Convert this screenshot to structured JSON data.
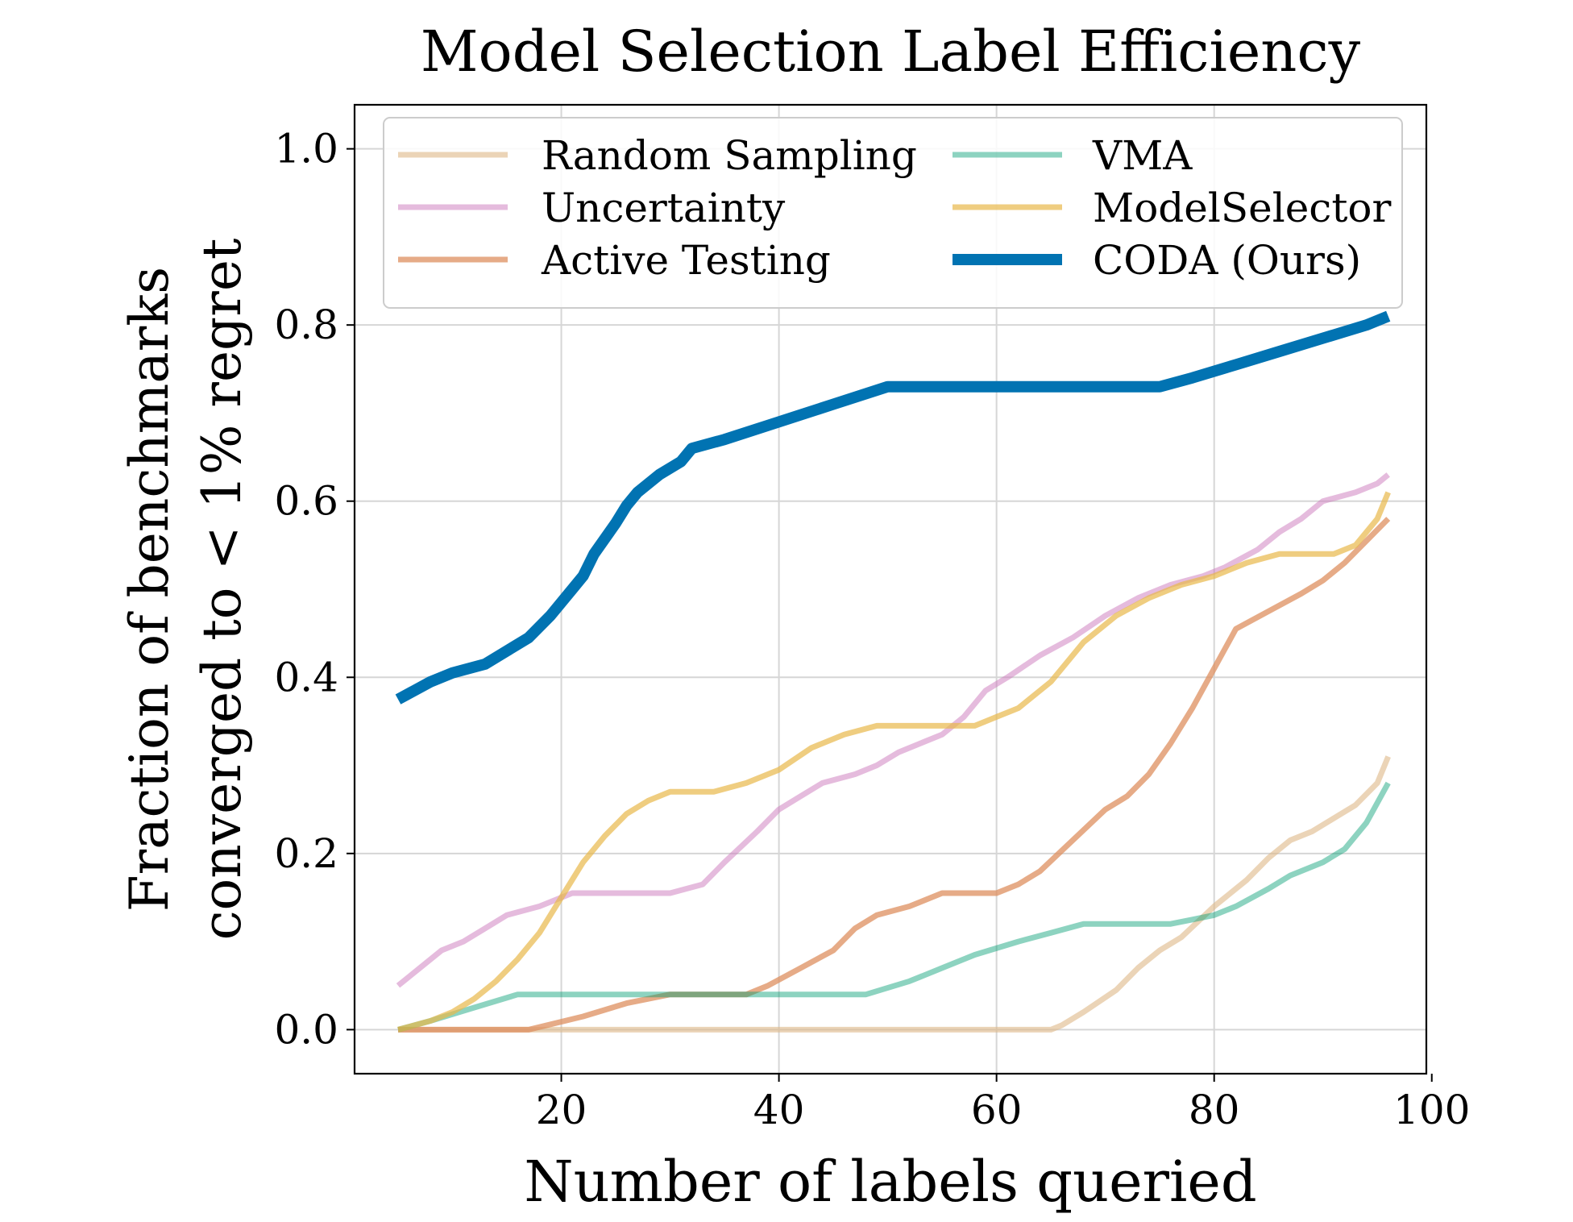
{
  "chart_data": {
    "type": "line",
    "title": "Model Selection Label Efficiency",
    "xlabel": "Number of labels queried",
    "ylabel_line1": "Fraction of benchmarks",
    "ylabel_line2": "converged to < 1% regret",
    "xlim": [
      1,
      99.5
    ],
    "ylim": [
      -0.05,
      1.05
    ],
    "xticks": [
      20,
      40,
      60,
      80,
      100
    ],
    "xtick_labels": [
      "20",
      "40",
      "60",
      "80",
      "100"
    ],
    "yticks": [
      0.0,
      0.2,
      0.4,
      0.6,
      0.8,
      1.0
    ],
    "ytick_labels": [
      "0.0",
      "0.2",
      "0.4",
      "0.6",
      "0.8",
      "1.0"
    ],
    "grid": true,
    "legend_position": "top",
    "series": [
      {
        "name": "Random Sampling",
        "color": "#deb887",
        "opacity": 0.6,
        "width": 7,
        "points": [
          [
            5,
            0
          ],
          [
            10,
            0
          ],
          [
            20,
            0
          ],
          [
            30,
            0
          ],
          [
            40,
            0
          ],
          [
            50,
            0
          ],
          [
            60,
            0
          ],
          [
            65,
            0
          ],
          [
            66,
            0.005
          ],
          [
            68,
            0.02
          ],
          [
            71,
            0.045
          ],
          [
            73,
            0.07
          ],
          [
            75,
            0.09
          ],
          [
            77,
            0.105
          ],
          [
            80,
            0.14
          ],
          [
            83,
            0.17
          ],
          [
            85,
            0.195
          ],
          [
            87,
            0.215
          ],
          [
            89,
            0.225
          ],
          [
            91,
            0.24
          ],
          [
            93,
            0.255
          ],
          [
            95,
            0.28
          ],
          [
            96,
            0.31
          ]
        ]
      },
      {
        "name": "Uncertainty",
        "color": "#cc78bc",
        "opacity": 0.5,
        "width": 7,
        "points": [
          [
            5,
            0.05
          ],
          [
            7,
            0.07
          ],
          [
            9,
            0.09
          ],
          [
            11,
            0.1
          ],
          [
            13,
            0.115
          ],
          [
            15,
            0.13
          ],
          [
            18,
            0.14
          ],
          [
            21,
            0.155
          ],
          [
            25,
            0.155
          ],
          [
            30,
            0.155
          ],
          [
            33,
            0.165
          ],
          [
            35,
            0.19
          ],
          [
            38,
            0.225
          ],
          [
            40,
            0.25
          ],
          [
            42,
            0.265
          ],
          [
            44,
            0.28
          ],
          [
            47,
            0.29
          ],
          [
            49,
            0.3
          ],
          [
            51,
            0.315
          ],
          [
            53,
            0.325
          ],
          [
            55,
            0.335
          ],
          [
            57,
            0.355
          ],
          [
            59,
            0.385
          ],
          [
            61,
            0.4
          ],
          [
            64,
            0.425
          ],
          [
            67,
            0.445
          ],
          [
            70,
            0.47
          ],
          [
            73,
            0.49
          ],
          [
            76,
            0.505
          ],
          [
            79,
            0.515
          ],
          [
            81,
            0.525
          ],
          [
            84,
            0.545
          ],
          [
            86,
            0.565
          ],
          [
            88,
            0.58
          ],
          [
            90,
            0.6
          ],
          [
            93,
            0.61
          ],
          [
            95,
            0.62
          ],
          [
            96,
            0.63
          ]
        ]
      },
      {
        "name": "Active Testing",
        "color": "#de8f5f",
        "opacity": 0.75,
        "width": 7,
        "points": [
          [
            5,
            0
          ],
          [
            10,
            0
          ],
          [
            17,
            0
          ],
          [
            18,
            0.003
          ],
          [
            22,
            0.015
          ],
          [
            26,
            0.03
          ],
          [
            30,
            0.04
          ],
          [
            34,
            0.04
          ],
          [
            37,
            0.04
          ],
          [
            39,
            0.05
          ],
          [
            42,
            0.07
          ],
          [
            45,
            0.09
          ],
          [
            47,
            0.115
          ],
          [
            49,
            0.13
          ],
          [
            52,
            0.14
          ],
          [
            55,
            0.155
          ],
          [
            58,
            0.155
          ],
          [
            60,
            0.155
          ],
          [
            62,
            0.165
          ],
          [
            64,
            0.18
          ],
          [
            67,
            0.215
          ],
          [
            70,
            0.25
          ],
          [
            72,
            0.265
          ],
          [
            74,
            0.29
          ],
          [
            76,
            0.325
          ],
          [
            78,
            0.365
          ],
          [
            80,
            0.41
          ],
          [
            82,
            0.455
          ],
          [
            85,
            0.475
          ],
          [
            88,
            0.495
          ],
          [
            90,
            0.51
          ],
          [
            92,
            0.53
          ],
          [
            94,
            0.555
          ],
          [
            96,
            0.58
          ]
        ]
      },
      {
        "name": "VMA",
        "color": "#029e73",
        "opacity": 0.45,
        "width": 7,
        "points": [
          [
            5,
            0
          ],
          [
            8,
            0.01
          ],
          [
            12,
            0.025
          ],
          [
            16,
            0.04
          ],
          [
            20,
            0.04
          ],
          [
            30,
            0.04
          ],
          [
            40,
            0.04
          ],
          [
            48,
            0.04
          ],
          [
            52,
            0.055
          ],
          [
            55,
            0.07
          ],
          [
            58,
            0.085
          ],
          [
            62,
            0.1
          ],
          [
            65,
            0.11
          ],
          [
            68,
            0.12
          ],
          [
            72,
            0.12
          ],
          [
            76,
            0.12
          ],
          [
            78,
            0.125
          ],
          [
            80,
            0.13
          ],
          [
            82,
            0.14
          ],
          [
            85,
            0.16
          ],
          [
            87,
            0.175
          ],
          [
            90,
            0.19
          ],
          [
            92,
            0.205
          ],
          [
            94,
            0.235
          ],
          [
            96,
            0.28
          ]
        ]
      },
      {
        "name": "ModelSelector",
        "color": "#ece133",
        "stroke": "#e8b84a",
        "opacity": 0.7,
        "width": 7,
        "points": [
          [
            5,
            0
          ],
          [
            8,
            0.01
          ],
          [
            10,
            0.02
          ],
          [
            12,
            0.035
          ],
          [
            14,
            0.055
          ],
          [
            16,
            0.08
          ],
          [
            18,
            0.11
          ],
          [
            20,
            0.15
          ],
          [
            22,
            0.19
          ],
          [
            24,
            0.22
          ],
          [
            26,
            0.245
          ],
          [
            28,
            0.26
          ],
          [
            30,
            0.27
          ],
          [
            34,
            0.27
          ],
          [
            37,
            0.28
          ],
          [
            40,
            0.295
          ],
          [
            43,
            0.32
          ],
          [
            46,
            0.335
          ],
          [
            49,
            0.345
          ],
          [
            52,
            0.345
          ],
          [
            55,
            0.345
          ],
          [
            58,
            0.345
          ],
          [
            60,
            0.355
          ],
          [
            62,
            0.365
          ],
          [
            65,
            0.395
          ],
          [
            68,
            0.44
          ],
          [
            71,
            0.47
          ],
          [
            74,
            0.49
          ],
          [
            77,
            0.505
          ],
          [
            80,
            0.515
          ],
          [
            83,
            0.53
          ],
          [
            86,
            0.54
          ],
          [
            88,
            0.54
          ],
          [
            91,
            0.54
          ],
          [
            93,
            0.55
          ],
          [
            95,
            0.58
          ],
          [
            96,
            0.61
          ]
        ]
      },
      {
        "name": "CODA (Ours)",
        "color": "#0173b2",
        "opacity": 1,
        "width": 14,
        "points": [
          [
            5,
            0.375
          ],
          [
            8,
            0.395
          ],
          [
            10,
            0.405
          ],
          [
            13,
            0.415
          ],
          [
            15,
            0.43
          ],
          [
            17,
            0.445
          ],
          [
            19,
            0.47
          ],
          [
            21,
            0.5
          ],
          [
            22,
            0.515
          ],
          [
            23,
            0.54
          ],
          [
            25,
            0.575
          ],
          [
            26,
            0.595
          ],
          [
            27,
            0.61
          ],
          [
            29,
            0.63
          ],
          [
            31,
            0.645
          ],
          [
            32,
            0.66
          ],
          [
            35,
            0.67
          ],
          [
            40,
            0.69
          ],
          [
            45,
            0.71
          ],
          [
            50,
            0.73
          ],
          [
            55,
            0.73
          ],
          [
            60,
            0.73
          ],
          [
            65,
            0.73
          ],
          [
            70,
            0.73
          ],
          [
            75,
            0.73
          ],
          [
            78,
            0.74
          ],
          [
            82,
            0.755
          ],
          [
            86,
            0.77
          ],
          [
            90,
            0.785
          ],
          [
            94,
            0.8
          ],
          [
            96,
            0.81
          ]
        ]
      }
    ]
  }
}
